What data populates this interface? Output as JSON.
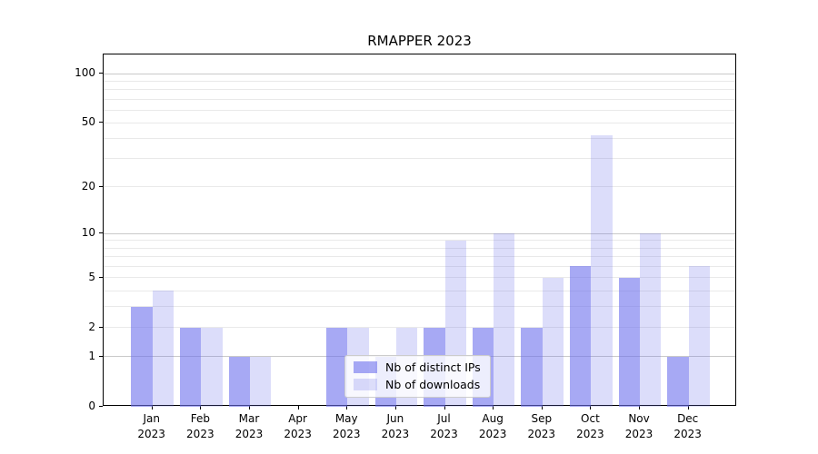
{
  "title": "RMAPPER 2023",
  "legend": {
    "items": [
      {
        "label": "Nb of distinct IPs",
        "series": "ips"
      },
      {
        "label": "Nb of downloads",
        "series": "downloads"
      }
    ]
  },
  "colors": {
    "bar_ips": "rgba(108,112,236,0.60)",
    "bar_downloads": "rgba(108,112,236,0.24)",
    "grid_major": "#c9c9c9",
    "grid_minor": "#e9e9e9",
    "axis_line": "#000000",
    "legend_bg": "rgba(255,255,255,0.8)",
    "legend_border": "#cccccc"
  },
  "chart_data": {
    "type": "bar",
    "title": "RMAPPER 2023",
    "categories": [
      "Jan 2023",
      "Feb 2023",
      "Mar 2023",
      "Apr 2023",
      "May 2023",
      "Jun 2023",
      "Jul 2023",
      "Aug 2023",
      "Sep 2023",
      "Oct 2023",
      "Nov 2023",
      "Dec 2023"
    ],
    "series": [
      {
        "key": "ips",
        "name": "Nb of distinct IPs",
        "values": [
          3,
          2,
          1,
          0,
          2,
          1,
          2,
          2,
          2,
          6,
          5,
          1
        ]
      },
      {
        "key": "downloads",
        "name": "Nb of downloads",
        "values": [
          4,
          2,
          1,
          0,
          2,
          2,
          9,
          10,
          5,
          42,
          10,
          6
        ]
      }
    ],
    "xlabel": "",
    "ylabel": "",
    "y_axis": {
      "scale": "log1p",
      "ticks": [
        0,
        1,
        2,
        5,
        10,
        20,
        50,
        100
      ],
      "minor_gridlines": [
        3,
        4,
        6,
        7,
        8,
        9,
        30,
        40,
        60,
        70,
        80,
        90
      ],
      "range": [
        0,
        130
      ]
    },
    "grid": true,
    "legend_position": "lower center"
  }
}
